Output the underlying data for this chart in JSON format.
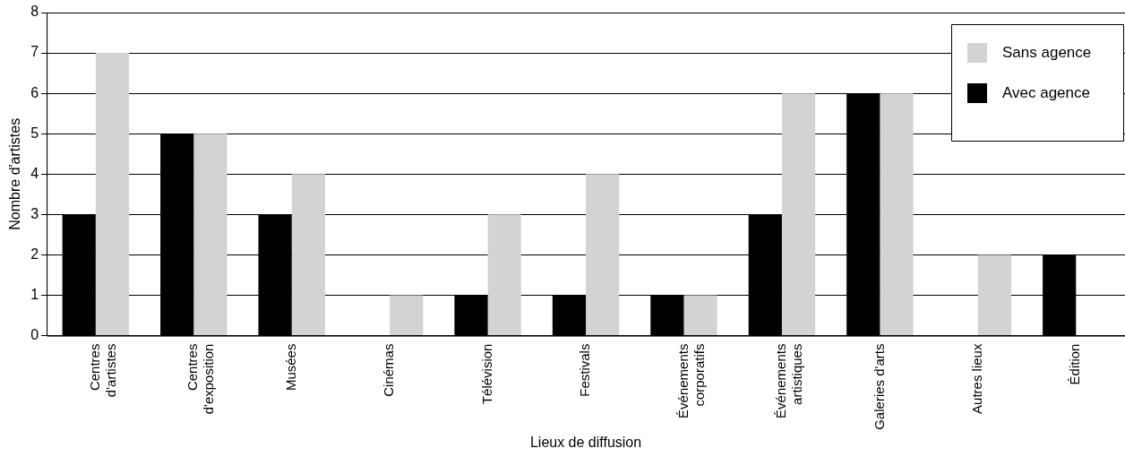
{
  "chart_data": {
    "type": "bar",
    "xlabel": "Lieux de diffusion",
    "ylabel": "Nombre d'artistes",
    "categories": [
      "Centres\nd'artistes",
      "Centres\nd'exposition",
      "Musées",
      "Cinémas",
      "Télévision",
      "Festivals",
      "Événements\ncorporatifs",
      "Événements\nartistiques",
      "Galeries d'arts",
      "Autres lieux",
      "Édition"
    ],
    "series": [
      {
        "name": "Avec agence",
        "color": "#000000",
        "values": [
          3,
          5,
          3,
          0,
          1,
          1,
          1,
          3,
          6,
          0,
          2
        ]
      },
      {
        "name": "Sans agence",
        "color": "#d3d3d3",
        "values": [
          7,
          5,
          4,
          1,
          3,
          4,
          1,
          6,
          6,
          2,
          0
        ]
      }
    ],
    "ylim": [
      0,
      8
    ],
    "yticks": [
      0,
      1,
      2,
      3,
      4,
      5,
      6,
      7,
      8
    ],
    "grid": "y",
    "legend": "top right"
  }
}
